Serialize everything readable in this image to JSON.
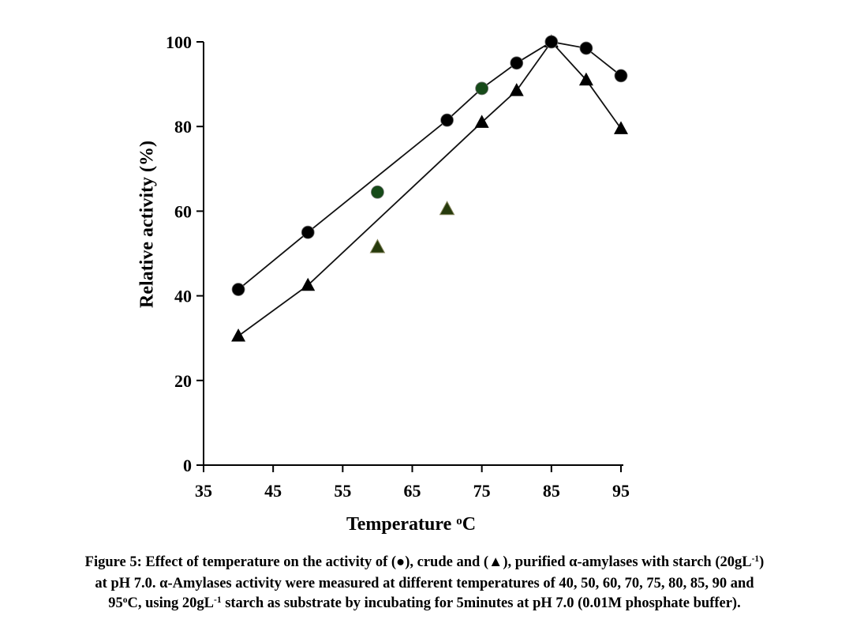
{
  "figure": {
    "caption_lines": [
      {
        "segments": [
          {
            "t": "Figure 5: Effect of temperature on the activity of (●), crude and (▲), purified α-amylases with starch (20gL"
          },
          {
            "t": "-1",
            "sup": true
          },
          {
            "t": ")"
          }
        ]
      },
      {
        "segments": [
          {
            "t": "at pH 7.0. α-Amylases activity were measured at different temperatures of 40, 50, 60, 70, 75, 80, 85, 90 and"
          }
        ]
      },
      {
        "segments": [
          {
            "t": "95"
          },
          {
            "t": "o",
            "sup": true
          },
          {
            "t": "C, using 20gL"
          },
          {
            "t": "-1",
            "sup": true
          },
          {
            "t": " starch as substrate by incubating for 5minutes at pH 7.0 (0.01M phosphate buffer)."
          }
        ]
      }
    ]
  },
  "chart_data": {
    "type": "scatter",
    "title": "",
    "ylabel": "Relative activity (%)",
    "xlabel_segments": [
      {
        "t": "Temperature "
      },
      {
        "t": "o",
        "sup": true
      },
      {
        "t": "C"
      }
    ],
    "x": [
      40,
      50,
      60,
      70,
      75,
      80,
      85,
      90,
      95
    ],
    "series": [
      {
        "name": "crude",
        "marker": "circle",
        "values": [
          41.5,
          55,
          64.5,
          81.5,
          89,
          95,
          100,
          98.5,
          92
        ],
        "line_x": [
          40,
          50,
          70,
          75,
          80,
          85,
          90,
          95
        ],
        "default_color": "#000000",
        "point_colors": {
          "60": "#164a19",
          "75": "#164a19"
        }
      },
      {
        "name": "purified",
        "marker": "triangle",
        "values": [
          30.5,
          42.5,
          51.5,
          60.5,
          81,
          88.5,
          100,
          91,
          79.5
        ],
        "line_x": [
          40,
          50,
          75,
          80,
          85,
          90,
          95
        ],
        "default_color": "#000000",
        "point_colors": {
          "60": "#263a0c",
          "70": "#263a0c"
        }
      }
    ],
    "xlim": [
      35,
      95
    ],
    "ylim": [
      0,
      100
    ],
    "x_ticks": [
      35,
      45,
      55,
      65,
      75,
      85,
      95
    ],
    "y_ticks": [
      0,
      20,
      40,
      60,
      80,
      100
    ],
    "grid": false,
    "legend": "none",
    "line_color": "#111111",
    "axis_color": "#000000"
  }
}
